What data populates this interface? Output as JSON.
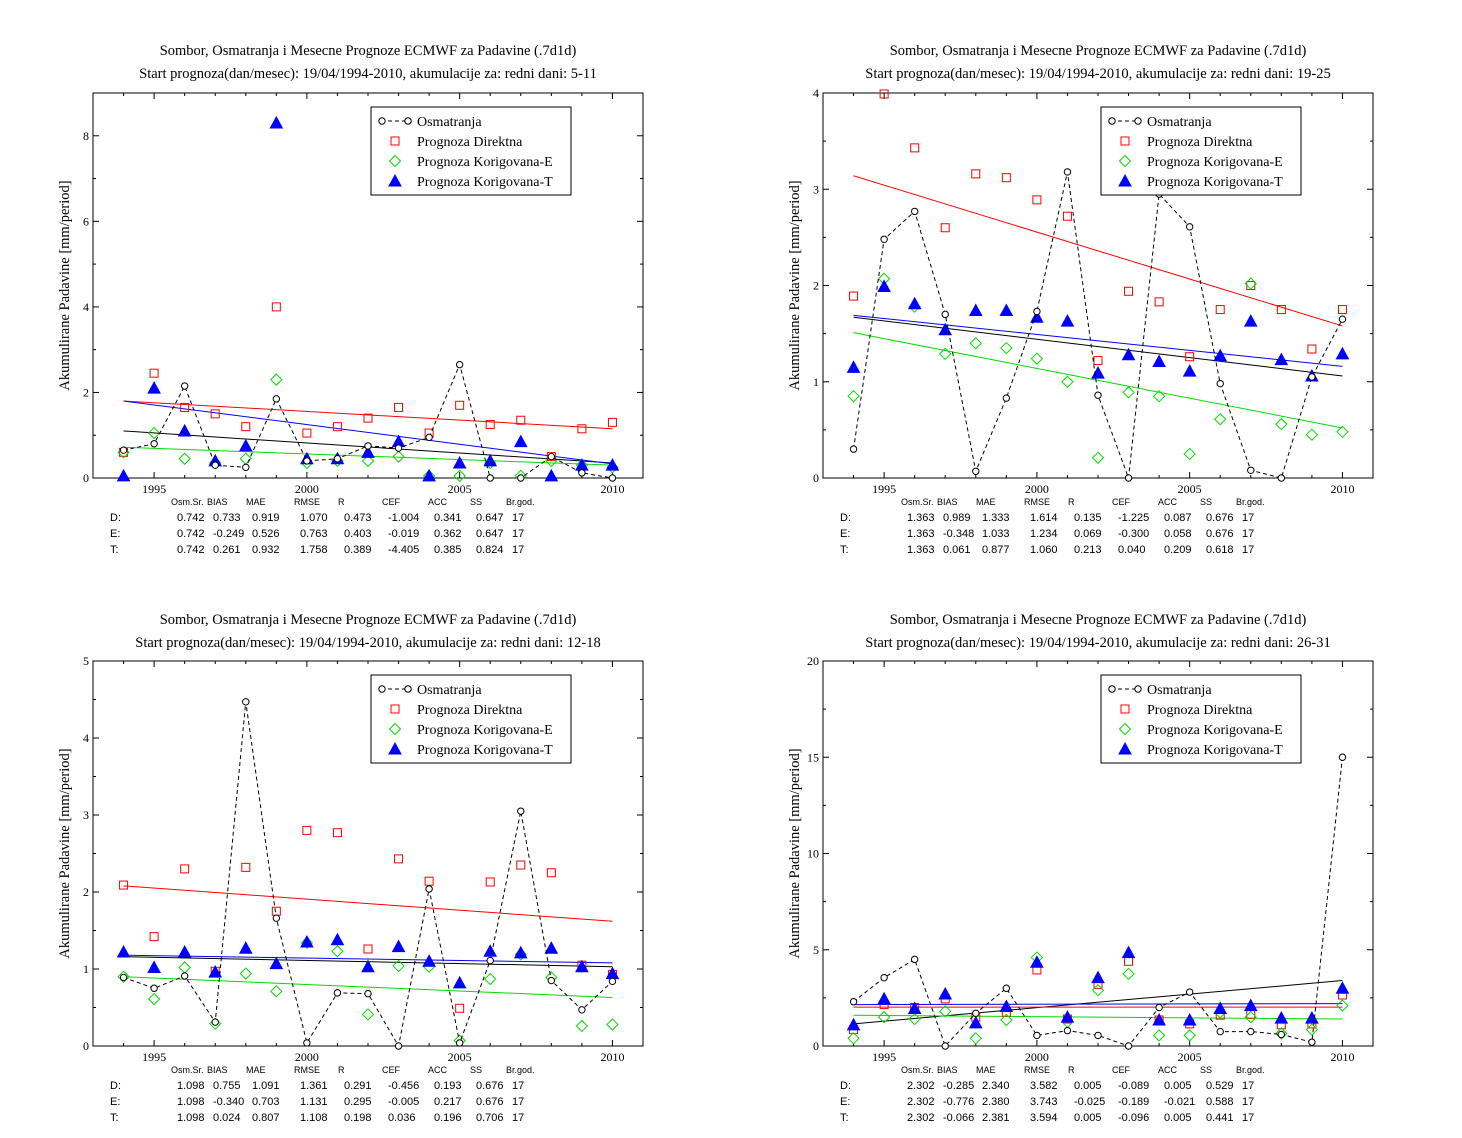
{
  "chart_data": [
    {
      "type": "scatter",
      "title": "Sombor, Osmatranja i Mesecne Prognoze ECMWF za Padavine (.7d1d)",
      "subtitle": "Start prognoza(dan/mesec): 19/04/1994-2010, akumulacije za: redni dani: 5-11",
      "xlabel": "",
      "ylabel": "Akumulirane Padavine [mm/period]",
      "xlim": [
        1993,
        2011
      ],
      "ylim": [
        0,
        9
      ],
      "xticks": [
        1995,
        2000,
        2005,
        2010
      ],
      "yticks": [
        0,
        2,
        4,
        6,
        8
      ],
      "legend_position": "top-right",
      "x": [
        1994,
        1995,
        1996,
        1997,
        1998,
        1999,
        2000,
        2001,
        2002,
        2003,
        2004,
        2005,
        2006,
        2007,
        2008,
        2009,
        2010
      ],
      "series": [
        {
          "name": "Osmatranja",
          "color": "#000000",
          "marker": "circle",
          "line": "dashed",
          "values": [
            0.65,
            0.8,
            2.15,
            0.3,
            0.25,
            1.85,
            0.4,
            0.45,
            0.75,
            0.7,
            0.95,
            2.65,
            0.0,
            0.0,
            0.5,
            0.12,
            0.0
          ]
        },
        {
          "name": "Prognoza Direktna",
          "color": "#ff0000",
          "marker": "square",
          "values": [
            0.6,
            2.45,
            1.65,
            1.5,
            1.2,
            4.0,
            1.05,
            1.2,
            1.4,
            1.65,
            1.05,
            1.7,
            1.25,
            1.35,
            0.5,
            1.15,
            1.3
          ]
        },
        {
          "name": "Prognoza Korigovana-E",
          "color": "#00dd00",
          "marker": "diamond",
          "values": [
            0.6,
            1.05,
            0.45,
            0.35,
            0.45,
            2.3,
            0.35,
            0.4,
            0.4,
            0.5,
            0.05,
            0.05,
            0.35,
            0.05,
            0.4,
            0.3,
            0.25
          ]
        },
        {
          "name": "Prognoza Korigovana-T",
          "color": "#0000ff",
          "marker": "triangle",
          "values": [
            0.05,
            2.1,
            1.1,
            0.4,
            0.75,
            8.3,
            0.45,
            0.45,
            0.6,
            0.85,
            0.05,
            0.35,
            0.4,
            0.85,
            0.05,
            0.3,
            0.3
          ]
        }
      ],
      "trends": [
        {
          "series": "Osmatranja",
          "color": "#000000",
          "y_start": 1.1,
          "y_end": 0.35
        },
        {
          "series": "Prognoza Direktna",
          "color": "#ff0000",
          "y_start": 1.8,
          "y_end": 1.15
        },
        {
          "series": "Prognoza Korigovana-E",
          "color": "#00dd00",
          "y_start": 0.72,
          "y_end": 0.3
        },
        {
          "series": "Prognoza Korigovana-T",
          "color": "#0000ff",
          "y_start": 1.8,
          "y_end": 0.33
        }
      ],
      "stats": {
        "headers": [
          "Osm.Sr.",
          "BIAS",
          "MAE",
          "RMSE",
          "R",
          "CEF",
          "ACC",
          "SS",
          "Br.god."
        ],
        "rows": [
          {
            "label": "D:",
            "color": "#ff0000",
            "values": [
              "0.742",
              "0.733",
              "0.919",
              "1.070",
              "0.473",
              "-1.004",
              "0.341",
              "0.647",
              "17"
            ]
          },
          {
            "label": "E:",
            "color": "#00cc00",
            "values": [
              "0.742",
              "-0.249",
              "0.526",
              "0.763",
              "0.403",
              "-0.019",
              "0.362",
              "0.647",
              "17"
            ]
          },
          {
            "label": "T:",
            "color": "#0000ff",
            "values": [
              "0.742",
              "0.261",
              "0.932",
              "1.758",
              "0.389",
              "-4.405",
              "0.385",
              "0.824",
              "17"
            ]
          }
        ]
      }
    },
    {
      "type": "scatter",
      "title": "Sombor, Osmatranja i Mesecne Prognoze ECMWF za Padavine (.7d1d)",
      "subtitle": "Start prognoza(dan/mesec): 19/04/1994-2010, akumulacije za: redni dani: 19-25",
      "xlabel": "",
      "ylabel": "Akumulirane Padavine [mm/period]",
      "xlim": [
        1993,
        2011
      ],
      "ylim": [
        0,
        4
      ],
      "xticks": [
        1995,
        2000,
        2005,
        2010
      ],
      "yticks": [
        0,
        1,
        2,
        3,
        4
      ],
      "legend_position": "top-right",
      "x": [
        1994,
        1995,
        1996,
        1997,
        1998,
        1999,
        2000,
        2001,
        2002,
        2003,
        2004,
        2005,
        2006,
        2007,
        2008,
        2009,
        2010
      ],
      "series": [
        {
          "name": "Osmatranja",
          "color": "#000000",
          "marker": "circle",
          "line": "dashed",
          "values": [
            0.3,
            2.48,
            2.77,
            1.7,
            0.07,
            0.83,
            1.73,
            3.18,
            0.86,
            0.0,
            2.95,
            2.61,
            0.98,
            0.08,
            0.0,
            1.05,
            1.65
          ]
        },
        {
          "name": "Prognoza Direktna",
          "color": "#ff0000",
          "marker": "square",
          "values": [
            1.89,
            3.99,
            3.43,
            2.6,
            3.16,
            3.12,
            2.89,
            2.72,
            1.22,
            1.94,
            1.83,
            1.26,
            1.75,
            2.0,
            1.75,
            1.34,
            1.75
          ]
        },
        {
          "name": "Prognoza Korigovana-E",
          "color": "#00dd00",
          "marker": "diamond",
          "values": [
            0.85,
            2.07,
            1.78,
            1.29,
            1.4,
            1.35,
            1.24,
            1.0,
            0.21,
            0.89,
            0.85,
            0.25,
            0.61,
            2.02,
            0.56,
            0.45,
            0.48
          ]
        },
        {
          "name": "Prognoza Korigovana-T",
          "color": "#0000ff",
          "marker": "triangle",
          "values": [
            1.15,
            1.99,
            1.81,
            1.54,
            1.74,
            1.74,
            1.67,
            1.63,
            1.09,
            1.28,
            1.21,
            1.11,
            1.27,
            1.63,
            1.23,
            1.06,
            1.29
          ]
        }
      ],
      "trends": [
        {
          "series": "Osmatranja",
          "color": "#000000",
          "y_start": 1.67,
          "y_end": 1.06
        },
        {
          "series": "Prognoza Direktna",
          "color": "#ff0000",
          "y_start": 3.14,
          "y_end": 1.58
        },
        {
          "series": "Prognoza Korigovana-E",
          "color": "#00dd00",
          "y_start": 1.51,
          "y_end": 0.52
        },
        {
          "series": "Prognoza Korigovana-T",
          "color": "#0000ff",
          "y_start": 1.69,
          "y_end": 1.16
        }
      ],
      "stats": {
        "headers": [
          "Osm.Sr.",
          "BIAS",
          "MAE",
          "RMSE",
          "R",
          "CEF",
          "ACC",
          "SS",
          "Br.god."
        ],
        "rows": [
          {
            "label": "D:",
            "color": "#ff0000",
            "values": [
              "1.363",
              "0.989",
              "1.333",
              "1.614",
              "0.135",
              "-1.225",
              "0.087",
              "0.676",
              "17"
            ]
          },
          {
            "label": "E:",
            "color": "#00cc00",
            "values": [
              "1.363",
              "-0.348",
              "1.033",
              "1.234",
              "0.069",
              "-0.300",
              "0.058",
              "0.676",
              "17"
            ]
          },
          {
            "label": "T:",
            "color": "#0000ff",
            "values": [
              "1.363",
              "0.061",
              "0.877",
              "1.060",
              "0.213",
              "0.040",
              "0.209",
              "0.618",
              "17"
            ]
          }
        ]
      }
    },
    {
      "type": "scatter",
      "title": "Sombor, Osmatranja i Mesecne Prognoze ECMWF za Padavine (.7d1d)",
      "subtitle": "Start prognoza(dan/mesec): 19/04/1994-2010, akumulacije za: redni dani: 12-18",
      "xlabel": "",
      "ylabel": "Akumulirane Padavine [mm/period]",
      "xlim": [
        1993,
        2011
      ],
      "ylim": [
        0,
        5
      ],
      "xticks": [
        1995,
        2000,
        2005,
        2010
      ],
      "yticks": [
        0,
        1,
        2,
        3,
        4,
        5
      ],
      "legend_position": "top-right",
      "x": [
        1994,
        1995,
        1996,
        1997,
        1998,
        1999,
        2000,
        2001,
        2002,
        2003,
        2004,
        2005,
        2006,
        2007,
        2008,
        2009,
        2010
      ],
      "series": [
        {
          "name": "Osmatranja",
          "color": "#000000",
          "marker": "circle",
          "line": "dashed",
          "values": [
            0.89,
            0.75,
            0.91,
            0.31,
            4.47,
            1.66,
            0.04,
            0.69,
            0.68,
            0.0,
            2.04,
            0.04,
            1.11,
            3.05,
            0.85,
            0.47,
            0.84
          ]
        },
        {
          "name": "Prognoza Direktna",
          "color": "#ff0000",
          "marker": "square",
          "values": [
            2.09,
            1.42,
            2.3,
            0.97,
            2.32,
            1.75,
            2.8,
            2.77,
            1.26,
            2.43,
            2.14,
            0.49,
            2.13,
            2.35,
            2.25,
            1.05,
            0.93
          ]
        },
        {
          "name": "Prognoza Korigovana-E",
          "color": "#00dd00",
          "marker": "diamond",
          "values": [
            0.9,
            0.61,
            1.02,
            0.29,
            0.94,
            0.71,
            1.34,
            1.23,
            0.41,
            1.04,
            1.03,
            0.07,
            0.87,
            1.19,
            0.89,
            0.26,
            0.28
          ]
        },
        {
          "name": "Prognoza Korigovana-T",
          "color": "#0000ff",
          "marker": "triangle",
          "values": [
            1.22,
            1.02,
            1.22,
            0.96,
            1.27,
            1.07,
            1.35,
            1.38,
            1.03,
            1.29,
            1.1,
            0.82,
            1.23,
            1.21,
            1.27,
            1.03,
            0.94
          ]
        }
      ],
      "trends": [
        {
          "series": "Osmatranja",
          "color": "#000000",
          "y_start": 1.16,
          "y_end": 1.03
        },
        {
          "series": "Prognoza Direktna",
          "color": "#ff0000",
          "y_start": 2.08,
          "y_end": 1.62
        },
        {
          "series": "Prognoza Korigovana-E",
          "color": "#00dd00",
          "y_start": 0.9,
          "y_end": 0.63
        },
        {
          "series": "Prognoza Korigovana-T",
          "color": "#0000ff",
          "y_start": 1.18,
          "y_end": 1.08
        }
      ],
      "stats": {
        "headers": [
          "Osm.Sr.",
          "BIAS",
          "MAE",
          "RMSE",
          "R",
          "CEF",
          "ACC",
          "SS",
          "Br.god."
        ],
        "rows": [
          {
            "label": "D:",
            "color": "#ff0000",
            "values": [
              "1.098",
              "0.755",
              "1.091",
              "1.361",
              "0.291",
              "-0.456",
              "0.193",
              "0.676",
              "17"
            ]
          },
          {
            "label": "E:",
            "color": "#00cc00",
            "values": [
              "1.098",
              "-0.340",
              "0.703",
              "1.131",
              "0.295",
              "-0.005",
              "0.217",
              "0.676",
              "17"
            ]
          },
          {
            "label": "T:",
            "color": "#0000ff",
            "values": [
              "1.098",
              "0.024",
              "0.807",
              "1.108",
              "0.198",
              "0.036",
              "0.196",
              "0.706",
              "17"
            ]
          }
        ]
      }
    },
    {
      "type": "scatter",
      "title": "Sombor, Osmatranja i Mesecne Prognoze ECMWF za Padavine (.7d1d)",
      "subtitle": "Start prognoza(dan/mesec): 19/04/1994-2010, akumulacije za: redni dani: 26-31",
      "xlabel": "",
      "ylabel": "Akumulirane Padavine [mm/period]",
      "xlim": [
        1993,
        2011
      ],
      "ylim": [
        0,
        20
      ],
      "xticks": [
        1995,
        2000,
        2005,
        2010
      ],
      "yticks": [
        0,
        5,
        10,
        15,
        20
      ],
      "legend_position": "top-right",
      "x": [
        1994,
        1995,
        1996,
        1997,
        1998,
        1999,
        2000,
        2001,
        2002,
        2003,
        2004,
        2005,
        2006,
        2007,
        2008,
        2009,
        2010
      ],
      "series": [
        {
          "name": "Osmatranja",
          "color": "#000000",
          "marker": "circle",
          "line": "dashed",
          "values": [
            2.3,
            3.55,
            4.5,
            0.0,
            1.7,
            3.0,
            0.55,
            0.8,
            0.55,
            0.0,
            2.0,
            2.8,
            0.75,
            0.75,
            0.6,
            0.2,
            15.0
          ]
        },
        {
          "name": "Prognoza Direktna",
          "color": "#ff0000",
          "marker": "square",
          "values": [
            0.85,
            2.15,
            2.0,
            2.45,
            1.5,
            1.75,
            3.95,
            1.4,
            3.2,
            4.4,
            1.35,
            1.15,
            1.6,
            1.65,
            1.1,
            1.15,
            2.65
          ]
        },
        {
          "name": "Prognoza Korigovana-E",
          "color": "#00dd00",
          "marker": "diamond",
          "values": [
            0.4,
            1.5,
            1.4,
            1.8,
            0.4,
            1.35,
            4.6,
            1.25,
            2.9,
            3.75,
            0.55,
            0.55,
            1.75,
            1.5,
            0.65,
            0.85,
            2.1
          ]
        },
        {
          "name": "Prognoza Korigovana-T",
          "color": "#0000ff",
          "marker": "triangle",
          "values": [
            1.1,
            2.45,
            1.95,
            2.7,
            1.2,
            2.05,
            4.35,
            1.5,
            3.55,
            4.85,
            1.35,
            1.35,
            1.95,
            2.1,
            1.45,
            1.45,
            3.0
          ]
        }
      ],
      "trends": [
        {
          "series": "Osmatranja",
          "color": "#000000",
          "y_start": 1.15,
          "y_end": 3.4
        },
        {
          "series": "Prognoza Direktna",
          "color": "#ff0000",
          "y_start": 2.02,
          "y_end": 2.02
        },
        {
          "series": "Prognoza Korigovana-E",
          "color": "#00dd00",
          "y_start": 1.6,
          "y_end": 1.4
        },
        {
          "series": "Prognoza Korigovana-T",
          "color": "#0000ff",
          "y_start": 2.15,
          "y_end": 2.2
        }
      ],
      "stats": {
        "headers": [
          "Osm.Sr.",
          "BIAS",
          "MAE",
          "RMSE",
          "R",
          "CEF",
          "ACC",
          "SS",
          "Br.god."
        ],
        "rows": [
          {
            "label": "D:",
            "color": "#ff0000",
            "values": [
              "2.302",
              "-0.285",
              "2.340",
              "3.582",
              "0.005",
              "-0.089",
              "0.005",
              "0.529",
              "17"
            ]
          },
          {
            "label": "E:",
            "color": "#00cc00",
            "values": [
              "2.302",
              "-0.776",
              "2.380",
              "3.743",
              "-0.025",
              "-0.189",
              "-0.021",
              "0.588",
              "17"
            ]
          },
          {
            "label": "T:",
            "color": "#0000ff",
            "values": [
              "2.302",
              "-0.066",
              "2.381",
              "3.594",
              "0.005",
              "-0.096",
              "0.005",
              "0.441",
              "17"
            ]
          }
        ]
      }
    }
  ]
}
